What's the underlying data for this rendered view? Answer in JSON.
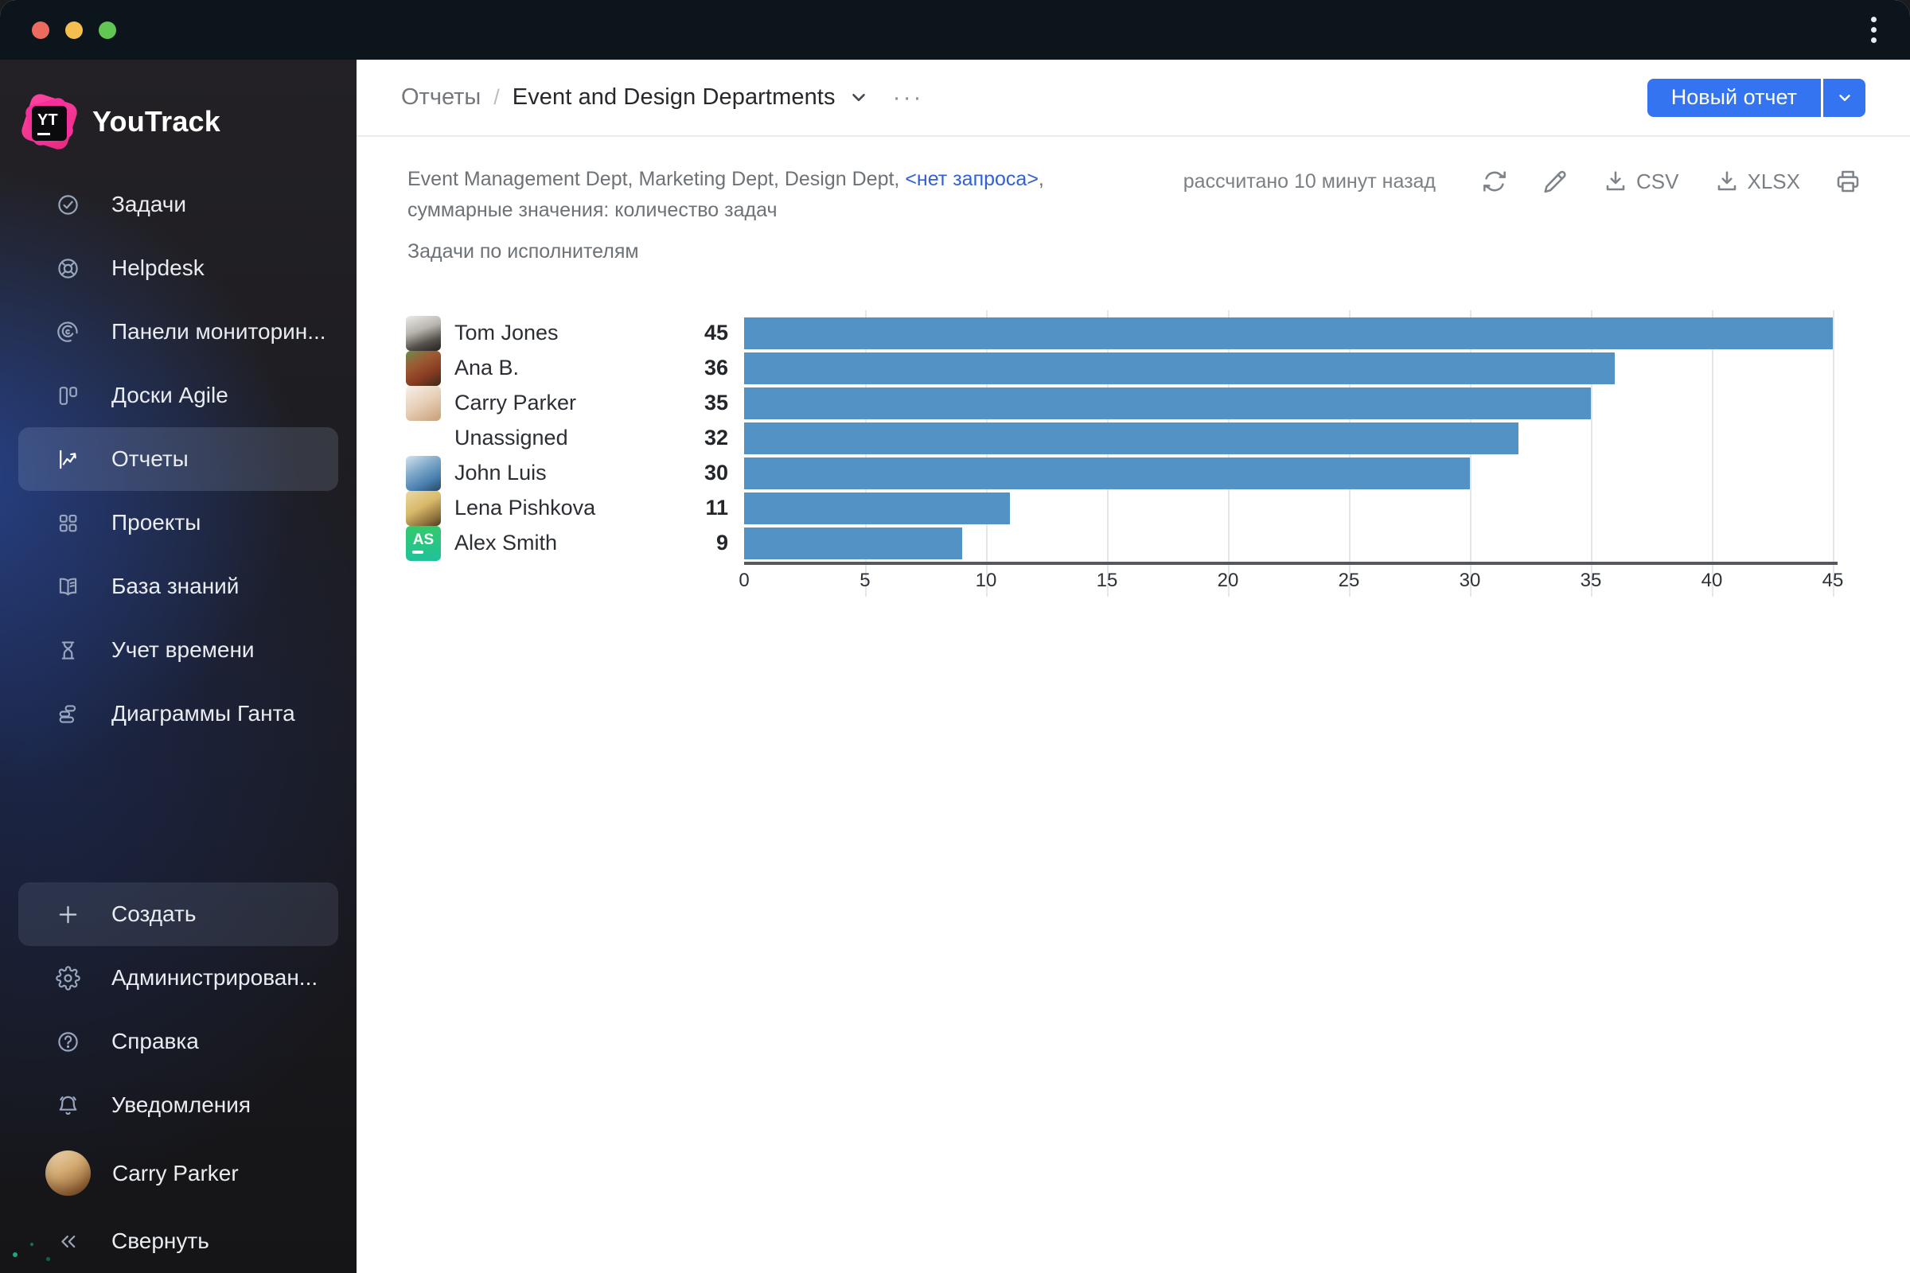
{
  "window": {
    "traffic_lights": [
      "#ed6a5f",
      "#f5bf4f",
      "#61c653"
    ]
  },
  "sidebar": {
    "logo_badge": "YT",
    "logo_text": "YouTrack",
    "items": [
      {
        "label": "Задачи",
        "icon": "tasks-icon",
        "selected": false
      },
      {
        "label": "Helpdesk",
        "icon": "helpdesk-icon",
        "selected": false
      },
      {
        "label": "Панели мониторин...",
        "icon": "dashboards-icon",
        "selected": false
      },
      {
        "label": "Доски Agile",
        "icon": "agile-boards-icon",
        "selected": false
      },
      {
        "label": "Отчеты",
        "icon": "reports-icon",
        "selected": true
      },
      {
        "label": "Проекты",
        "icon": "projects-icon",
        "selected": false
      },
      {
        "label": "База знаний",
        "icon": "knowledge-base-icon",
        "selected": false
      },
      {
        "label": "Учет времени",
        "icon": "time-tracking-icon",
        "selected": false
      },
      {
        "label": "Диаграммы Ганта",
        "icon": "gantt-icon",
        "selected": false
      }
    ],
    "footer_items": [
      {
        "label": "Создать",
        "icon": "plus-icon",
        "highlighted": true
      },
      {
        "label": "Администрирован...",
        "icon": "gear-icon",
        "highlighted": false
      },
      {
        "label": "Справка",
        "icon": "help-icon",
        "highlighted": false
      },
      {
        "label": "Уведомления",
        "icon": "bell-icon",
        "highlighted": false
      }
    ],
    "user": {
      "name": "Carry Parker"
    },
    "collapse_label": "Свернуть",
    "collapse_icon": "collapse-icon"
  },
  "header": {
    "breadcrumb_root": "Отчеты",
    "breadcrumb_sep": "/",
    "title": "Event and Design Departments",
    "dots": "···",
    "new_report_label": "Новый отчет"
  },
  "report": {
    "meta_text": "Event Management Dept, Marketing Dept, Design Dept, ",
    "meta_link": "<нет запроса>",
    "meta_comma": ",",
    "meta_line2": "суммарные значения: количество задач",
    "subtitle": "Задачи по исполнителям",
    "calculated": "рассчитано 10 минут назад",
    "csv_label": "CSV",
    "xlsx_label": "XLSX"
  },
  "chart_data": {
    "type": "bar",
    "orientation": "horizontal",
    "title": "Задачи по исполнителям",
    "categories": [
      "Tom Jones",
      "Ana B.",
      "Carry Parker",
      "Unassigned",
      "John Luis",
      "Lena Pishkova",
      "Alex Smith"
    ],
    "values": [
      45,
      36,
      35,
      32,
      30,
      11,
      9
    ],
    "xlabel": "",
    "ylabel": "",
    "xlim": [
      0,
      45
    ],
    "xticks": [
      0,
      5,
      10,
      15,
      20,
      25,
      30,
      35,
      40,
      45
    ],
    "grid": true,
    "legend": false,
    "bar_color": "#5292c4",
    "gridline_color": "#e5e7ea",
    "axis_color": "#55585c",
    "avatars": [
      {
        "kind": "photo",
        "gradient": "linear-gradient(160deg,#ecebe7 0%,#b9b5af 40%,#55504a 72%,#23211f 100%)"
      },
      {
        "kind": "photo",
        "gradient": "linear-gradient(150deg,#6f8a4f 0%,#9c5a33 35%,#8a3c22 65%,#3a2a18 100%)"
      },
      {
        "kind": "photo",
        "gradient": "linear-gradient(150deg,#f6f1ea 0%,#e7ceb5 50%,#c89e78 100%)"
      },
      {
        "kind": "none",
        "gradient": ""
      },
      {
        "kind": "photo",
        "gradient": "linear-gradient(150deg,#d4e3ec 0%,#7da7c8 40%,#4a7fb0 70%,#27465e 100%)"
      },
      {
        "kind": "photo",
        "gradient": "linear-gradient(150deg,#ead9a8 0%,#d9b96a 45%,#8a6f3a 80%,#4a3a22 100%)"
      },
      {
        "kind": "initials",
        "initials": "AS",
        "gradient": "linear-gradient(180deg,#34c96a 0%,#1fc29b 100%)"
      }
    ]
  }
}
